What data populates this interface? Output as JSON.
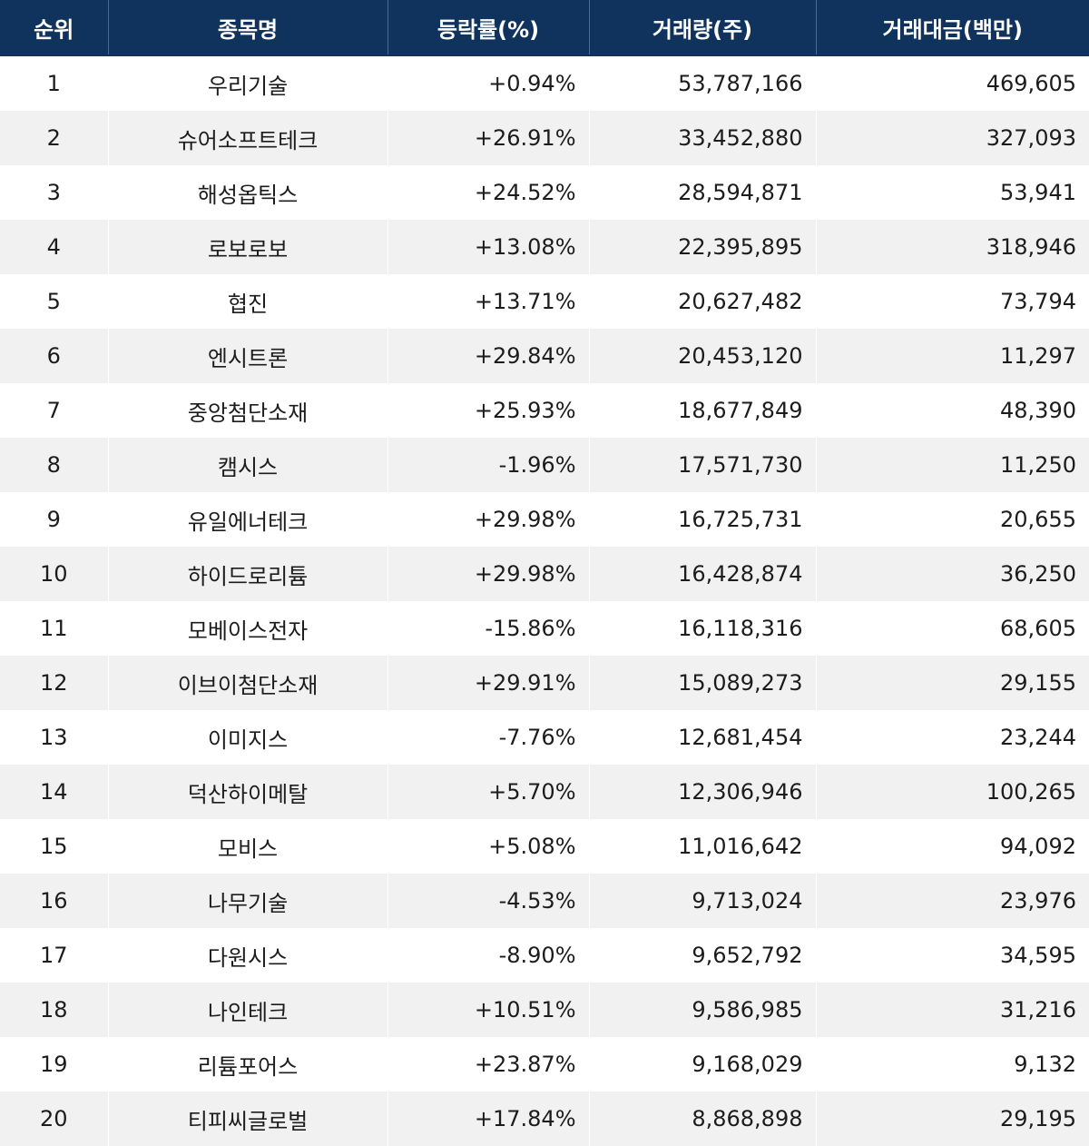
{
  "headers": {
    "rank": "순위",
    "name": "종목명",
    "change_rate": "등락률(%)",
    "volume": "거래량(주)",
    "trade_amount": "거래대금(백만)"
  },
  "rows": [
    {
      "rank": "1",
      "name": "우리기술",
      "change_rate": "+0.94%",
      "volume": "53,787,166",
      "trade_amount": "469,605"
    },
    {
      "rank": "2",
      "name": "슈어소프트테크",
      "change_rate": "+26.91%",
      "volume": "33,452,880",
      "trade_amount": "327,093"
    },
    {
      "rank": "3",
      "name": "해성옵틱스",
      "change_rate": "+24.52%",
      "volume": "28,594,871",
      "trade_amount": "53,941"
    },
    {
      "rank": "4",
      "name": "로보로보",
      "change_rate": "+13.08%",
      "volume": "22,395,895",
      "trade_amount": "318,946"
    },
    {
      "rank": "5",
      "name": "협진",
      "change_rate": "+13.71%",
      "volume": "20,627,482",
      "trade_amount": "73,794"
    },
    {
      "rank": "6",
      "name": "엔시트론",
      "change_rate": "+29.84%",
      "volume": "20,453,120",
      "trade_amount": "11,297"
    },
    {
      "rank": "7",
      "name": "중앙첨단소재",
      "change_rate": "+25.93%",
      "volume": "18,677,849",
      "trade_amount": "48,390"
    },
    {
      "rank": "8",
      "name": "캠시스",
      "change_rate": "-1.96%",
      "volume": "17,571,730",
      "trade_amount": "11,250"
    },
    {
      "rank": "9",
      "name": "유일에너테크",
      "change_rate": "+29.98%",
      "volume": "16,725,731",
      "trade_amount": "20,655"
    },
    {
      "rank": "10",
      "name": "하이드로리튬",
      "change_rate": "+29.98%",
      "volume": "16,428,874",
      "trade_amount": "36,250"
    },
    {
      "rank": "11",
      "name": "모베이스전자",
      "change_rate": "-15.86%",
      "volume": "16,118,316",
      "trade_amount": "68,605"
    },
    {
      "rank": "12",
      "name": "이브이첨단소재",
      "change_rate": "+29.91%",
      "volume": "15,089,273",
      "trade_amount": "29,155"
    },
    {
      "rank": "13",
      "name": "이미지스",
      "change_rate": "-7.76%",
      "volume": "12,681,454",
      "trade_amount": "23,244"
    },
    {
      "rank": "14",
      "name": "덕산하이메탈",
      "change_rate": "+5.70%",
      "volume": "12,306,946",
      "trade_amount": "100,265"
    },
    {
      "rank": "15",
      "name": "모비스",
      "change_rate": "+5.08%",
      "volume": "11,016,642",
      "trade_amount": "94,092"
    },
    {
      "rank": "16",
      "name": "나무기술",
      "change_rate": "-4.53%",
      "volume": "9,713,024",
      "trade_amount": "23,976"
    },
    {
      "rank": "17",
      "name": "다원시스",
      "change_rate": "-8.90%",
      "volume": "9,652,792",
      "trade_amount": "34,595"
    },
    {
      "rank": "18",
      "name": "나인테크",
      "change_rate": "+10.51%",
      "volume": "9,586,985",
      "trade_amount": "31,216"
    },
    {
      "rank": "19",
      "name": "리튬포어스",
      "change_rate": "+23.87%",
      "volume": "9,168,029",
      "trade_amount": "9,132"
    },
    {
      "rank": "20",
      "name": "티피씨글로벌",
      "change_rate": "+17.84%",
      "volume": "8,868,898",
      "trade_amount": "29,195"
    }
  ],
  "colors": {
    "header_bg": "#0f335c",
    "header_text": "#ffffff",
    "row_alt_bg": "#f1f1f1",
    "row_bg": "#ffffff",
    "text": "#1c1c1c"
  }
}
